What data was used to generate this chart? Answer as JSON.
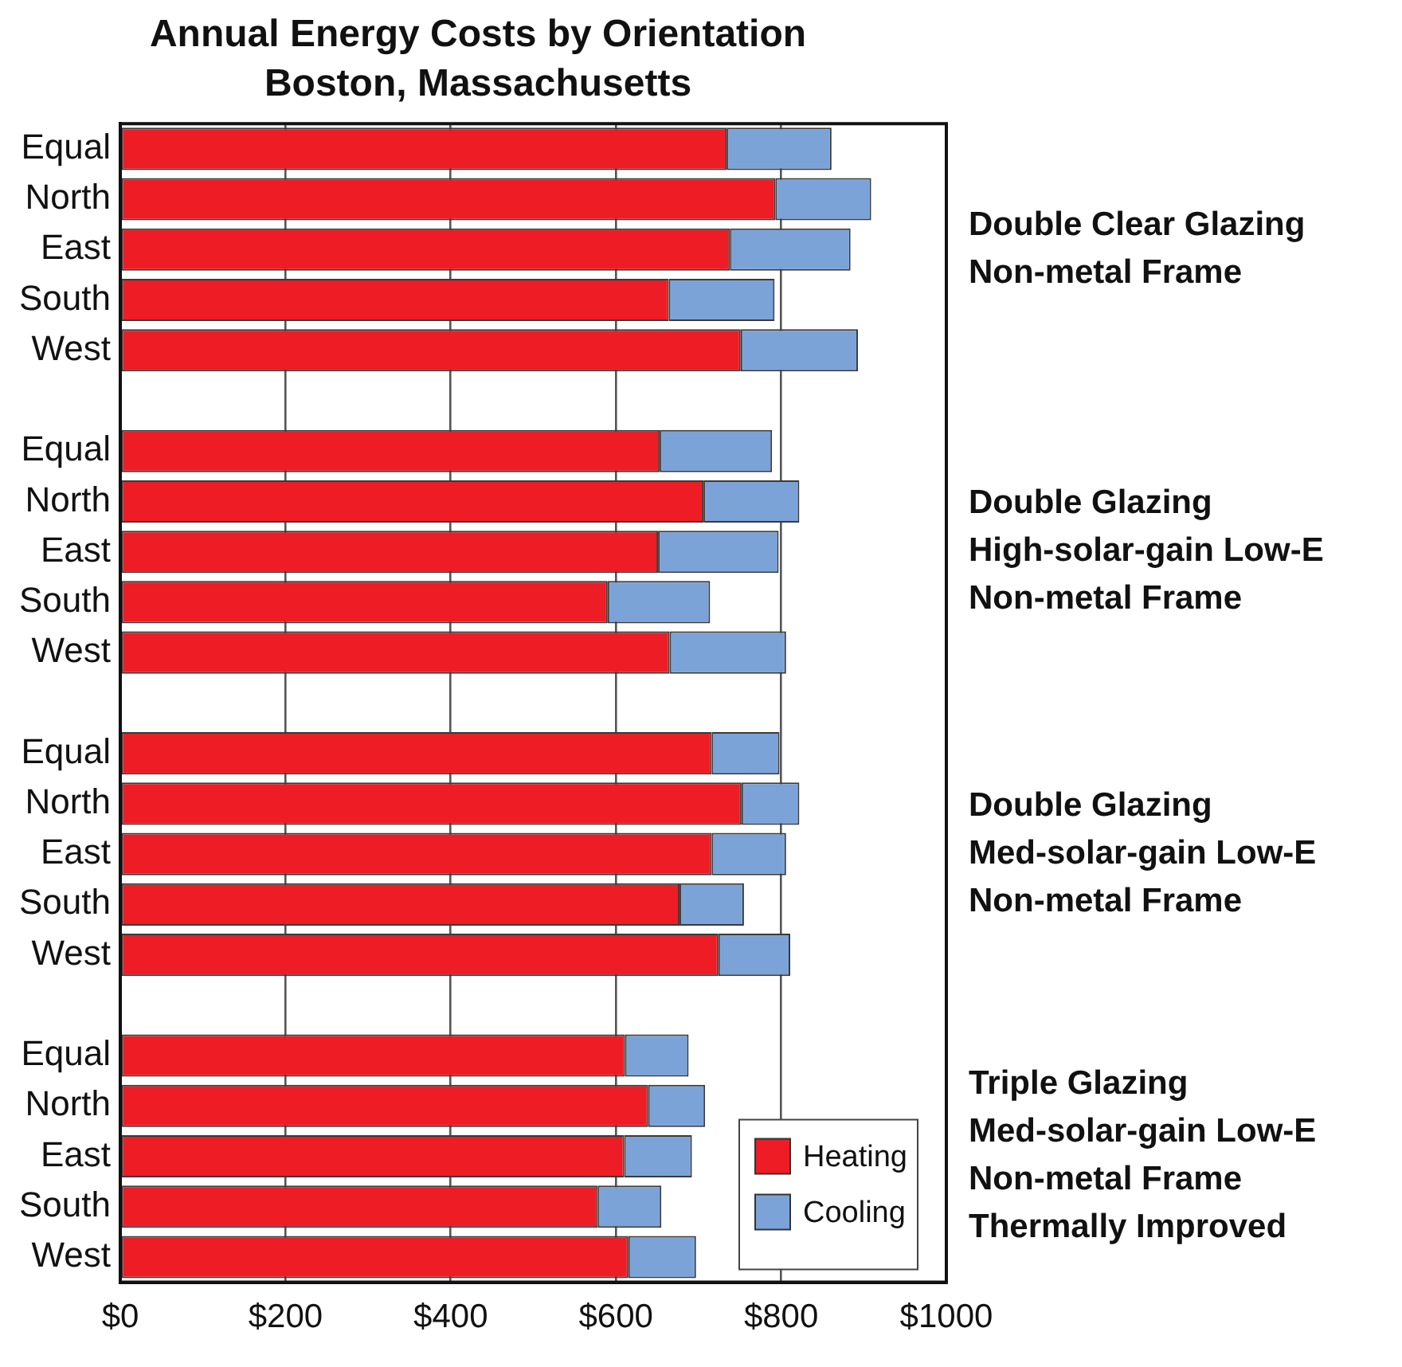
{
  "chart_data": {
    "type": "bar",
    "orientation": "horizontal",
    "stacked": true,
    "title": "Annual Energy Costs by Orientation",
    "subtitle": "Boston, Massachusetts",
    "categories": [
      "Equal",
      "North",
      "East",
      "South",
      "West",
      null,
      "Equal",
      "North",
      "East",
      "South",
      "West",
      null,
      "Equal",
      "North",
      "East",
      "South",
      "West",
      null,
      "Equal",
      "North",
      "East",
      "South",
      "West"
    ],
    "series": [
      {
        "name": "Heating",
        "color": "#ee1c25",
        "values": [
          734,
          793,
          738,
          664,
          751,
          null,
          653,
          706,
          651,
          590,
          665,
          null,
          716,
          752,
          716,
          677,
          724,
          null,
          611,
          639,
          610,
          578,
          615
        ]
      },
      {
        "name": "Cooling",
        "color": "#7ba3d8",
        "values": [
          127,
          116,
          146,
          128,
          142,
          null,
          136,
          116,
          146,
          124,
          141,
          null,
          82,
          70,
          90,
          78,
          87,
          null,
          77,
          69,
          82,
          77,
          82
        ]
      }
    ],
    "xlim": [
      0,
      1000
    ],
    "xticks": [
      {
        "value": 0,
        "label": "$0"
      },
      {
        "value": 200,
        "label": "$200"
      },
      {
        "value": 400,
        "label": "$400"
      },
      {
        "value": 600,
        "label": "$600"
      },
      {
        "value": 800,
        "label": "$800"
      },
      {
        "value": 1000,
        "label": "$1000"
      }
    ],
    "grid": "x",
    "legend": "bottom right",
    "annotations": [
      "Double Clear Glazing\nNon-metal Frame",
      "Double Glazing\nHigh-solar-gain Low-E\nNon-metal Frame",
      "Double Glazing\nMed-solar-gain Low-E\nNon-metal Frame",
      "Triple Glazing\nMed-solar-gain Low-E\nNon-metal Frame\nThermally Improved"
    ]
  }
}
